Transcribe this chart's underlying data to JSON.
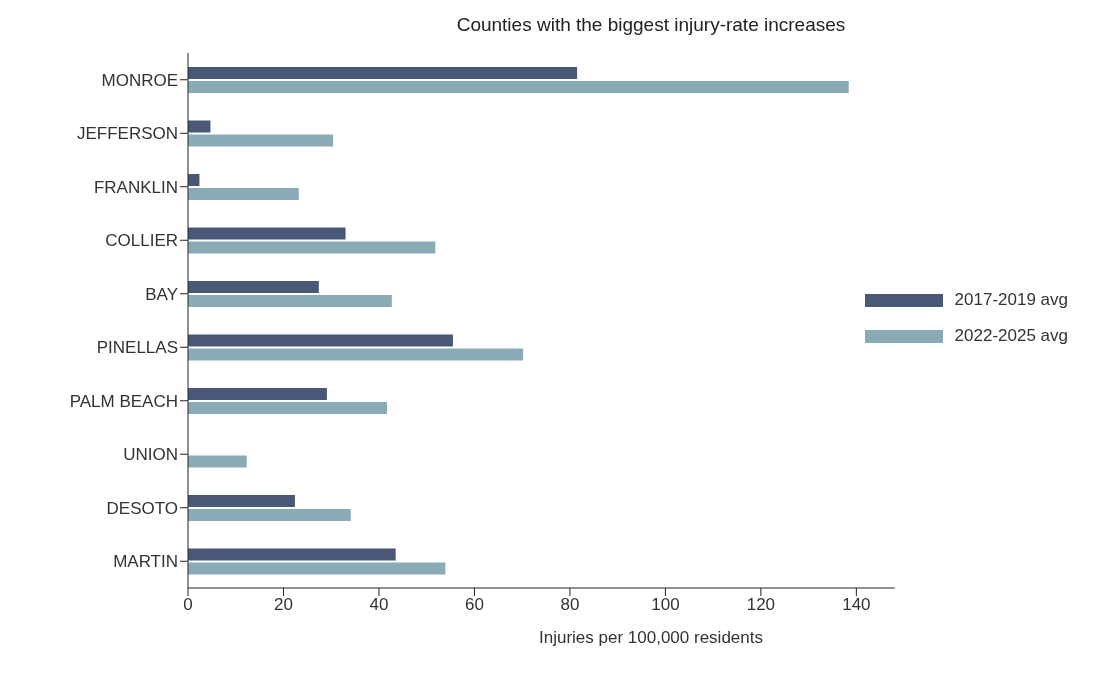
{
  "chart_data": {
    "type": "bar",
    "orientation": "horizontal",
    "title": "Counties with the biggest injury-rate increases",
    "xlabel": "Injuries per 100,000 residents",
    "categories": [
      "MONROE",
      "JEFFERSON",
      "FRANKLIN",
      "COLLIER",
      "BAY",
      "PINELLAS",
      "PALM BEACH",
      "UNION",
      "DESOTO",
      "MARTIN"
    ],
    "series": [
      {
        "name": "2017-2019 avg",
        "color": "#4a5878",
        "values": [
          81.5,
          4.7,
          2.4,
          33.0,
          27.4,
          55.5,
          29.1,
          null,
          22.4,
          43.5
        ]
      },
      {
        "name": "2022-2025 avg",
        "color": "#8aabb5",
        "values": [
          138.4,
          30.4,
          23.2,
          51.8,
          42.7,
          70.2,
          41.7,
          12.3,
          34.1,
          53.9
        ]
      }
    ],
    "xlim": [
      0,
      148
    ],
    "xticks": [
      0,
      20,
      40,
      60,
      80,
      100,
      120,
      140
    ],
    "grid": false,
    "legend": "right"
  }
}
